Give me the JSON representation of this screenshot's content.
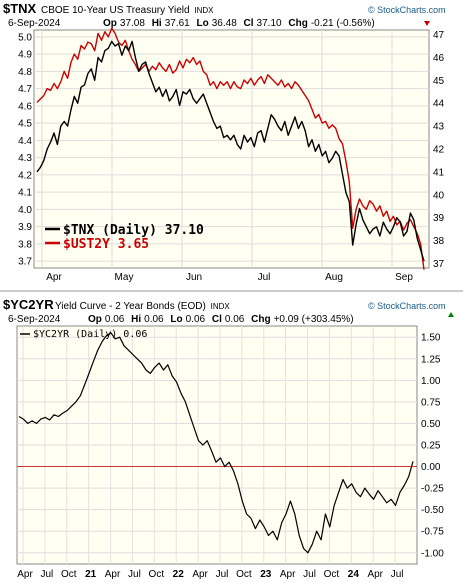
{
  "chart_data": [
    {
      "type": "line",
      "symbol": "$TNX",
      "title": "CBOE 10-Year US Treasury Yield",
      "exchange": "INDX",
      "date": "6-Sep-2024",
      "ohlc": {
        "op": "37.08",
        "hi": "37.61",
        "lo": "36.48",
        "cl": "37.10",
        "chg": "-0.21 (-0.56%)"
      },
      "brand": "© StockCharts.com",
      "legend": [
        {
          "name": "$TNX (Daily) 37.10",
          "color": "#000000"
        },
        {
          "name": "$UST2Y 3.65",
          "color": "#cc0000"
        }
      ],
      "x_labels": [
        "Apr",
        "May",
        "Jun",
        "Jul",
        "Aug",
        "Sep"
      ],
      "left_axis": {
        "ticks": [
          "5.0",
          "4.9",
          "4.8",
          "4.7",
          "4.6",
          "4.5",
          "4.4",
          "4.3",
          "4.2",
          "4.1",
          "4.0",
          "3.9",
          "3.8",
          "3.7"
        ],
        "range": [
          3.66,
          5.04
        ]
      },
      "right_axis": {
        "ticks": [
          "47",
          "46",
          "45",
          "44",
          "43",
          "42",
          "41",
          "40",
          "39",
          "38",
          "37"
        ],
        "range": [
          36.8,
          47.2
        ]
      },
      "series": [
        {
          "name": "$TNX (Daily)",
          "color": "#000000",
          "axis": "right",
          "values": [
            41.0,
            41.2,
            41.5,
            42.0,
            42.3,
            42.7,
            42.2,
            43.0,
            43.2,
            43.0,
            43.7,
            44.3,
            44.0,
            44.7,
            44.8,
            45.3,
            45.5,
            45.0,
            46.0,
            45.8,
            46.3,
            46.4,
            46.7,
            46.5,
            46.6,
            46.1,
            46.5,
            46.3,
            46.7,
            46.0,
            45.4,
            45.7,
            45.8,
            45.3,
            44.9,
            44.5,
            44.7,
            44.3,
            44.6,
            44.1,
            44.3,
            44.6,
            43.9,
            44.5,
            44.4,
            44.6,
            44.2,
            44.0,
            44.2,
            44.4,
            44.0,
            43.6,
            43.2,
            42.9,
            43.0,
            42.5,
            42.6,
            42.4,
            42.6,
            42.2,
            42.0,
            42.6,
            42.3,
            42.5,
            42.1,
            42.7,
            42.8,
            42.3,
            42.9,
            43.5,
            43.3,
            43.0,
            42.8,
            43.2,
            42.6,
            43.0,
            43.4,
            42.9,
            43.2,
            42.8,
            42.1,
            42.4,
            41.9,
            42.2,
            41.7,
            41.9,
            41.4,
            41.6,
            41.9,
            41.7,
            40.9,
            40.1,
            39.7,
            37.8,
            38.7,
            39.4,
            38.9,
            38.6,
            38.3,
            38.5,
            38.6,
            38.2,
            38.8,
            38.5,
            38.3,
            38.6,
            39.0,
            38.8,
            38.2,
            38.4,
            39.2,
            38.9,
            38.1,
            37.6,
            37.1
          ]
        },
        {
          "name": "$UST2Y",
          "color": "#cc0000",
          "axis": "left",
          "values": [
            4.62,
            4.64,
            4.66,
            4.7,
            4.69,
            4.73,
            4.7,
            4.74,
            4.8,
            4.76,
            4.85,
            4.9,
            4.87,
            4.95,
            4.93,
            4.97,
            4.96,
            4.92,
            5.02,
            4.98,
            5.03,
            5.0,
            5.05,
            5.02,
            4.97,
            4.95,
            4.98,
            4.92,
            4.87,
            4.84,
            4.8,
            4.82,
            4.84,
            4.8,
            4.83,
            4.81,
            4.85,
            4.82,
            4.8,
            4.84,
            4.79,
            4.81,
            4.86,
            4.82,
            4.87,
            4.85,
            4.88,
            4.84,
            4.86,
            4.8,
            4.78,
            4.72,
            4.74,
            4.7,
            4.74,
            4.72,
            4.74,
            4.7,
            4.74,
            4.71,
            4.7,
            4.75,
            4.73,
            4.76,
            4.72,
            4.75,
            4.77,
            4.73,
            4.78,
            4.76,
            4.74,
            4.72,
            4.75,
            4.71,
            4.73,
            4.7,
            4.74,
            4.72,
            4.69,
            4.66,
            4.63,
            4.58,
            4.53,
            4.55,
            4.5,
            4.51,
            4.47,
            4.49,
            4.47,
            4.41,
            4.38,
            4.28,
            4.16,
            3.89,
            4.0,
            4.06,
            4.02,
            4.0,
            4.05,
            4.03,
            3.99,
            4.02,
            3.96,
            3.99,
            3.93,
            3.96,
            3.91,
            3.93,
            3.88,
            3.92,
            3.94,
            3.9,
            3.86,
            3.8,
            3.65
          ]
        }
      ]
    },
    {
      "type": "line",
      "symbol": "$YC2YR",
      "title": "Yield Curve - 2 Year Bonds (EOD)",
      "exchange": "INDX",
      "date": "6-Sep-2024",
      "ohlc": {
        "op": "0.06",
        "hi": "0.06",
        "lo": "0.06",
        "cl": "0.06",
        "chg": "+0.09 (+303.45%)"
      },
      "brand": "© StockCharts.com",
      "legend": [
        {
          "name": "$YC2YR (Daily) 0.06",
          "color": "#000000"
        }
      ],
      "x_labels": [
        {
          "text": "Apr",
          "bold": false
        },
        {
          "text": "Jul",
          "bold": false
        },
        {
          "text": "Oct",
          "bold": false
        },
        {
          "text": "21",
          "bold": true
        },
        {
          "text": "Apr",
          "bold": false
        },
        {
          "text": "Jul",
          "bold": false
        },
        {
          "text": "Oct",
          "bold": false
        },
        {
          "text": "22",
          "bold": true
        },
        {
          "text": "Apr",
          "bold": false
        },
        {
          "text": "Jul",
          "bold": false
        },
        {
          "text": "Oct",
          "bold": false
        },
        {
          "text": "23",
          "bold": true
        },
        {
          "text": "Apr",
          "bold": false
        },
        {
          "text": "Jul",
          "bold": false
        },
        {
          "text": "Oct",
          "bold": false
        },
        {
          "text": "24",
          "bold": true
        },
        {
          "text": "Apr",
          "bold": false
        },
        {
          "text": "Jul",
          "bold": false
        }
      ],
      "right_axis": {
        "ticks": [
          "1.50",
          "1.25",
          "1.00",
          "0.75",
          "0.50",
          "0.25",
          "0.00",
          "-0.25",
          "-0.50",
          "-0.75",
          "-1.00"
        ],
        "range": [
          -1.13,
          1.63
        ]
      },
      "reference_line": {
        "value": 0.0,
        "color": "#cc3333"
      },
      "series": [
        {
          "name": "$YC2YR (Daily)",
          "color": "#000000",
          "values": [
            0.58,
            0.55,
            0.5,
            0.53,
            0.5,
            0.55,
            0.57,
            0.54,
            0.6,
            0.58,
            0.62,
            0.65,
            0.7,
            0.75,
            0.82,
            0.95,
            1.08,
            1.22,
            1.35,
            1.45,
            1.52,
            1.55,
            1.48,
            1.5,
            1.4,
            1.35,
            1.3,
            1.25,
            1.2,
            1.12,
            1.08,
            1.15,
            1.2,
            1.12,
            1.18,
            1.05,
            0.98,
            0.85,
            0.75,
            0.6,
            0.45,
            0.3,
            0.25,
            0.3,
            0.18,
            0.05,
            0.1,
            0.0,
            0.05,
            -0.05,
            -0.2,
            -0.4,
            -0.55,
            -0.6,
            -0.72,
            -0.62,
            -0.7,
            -0.8,
            -0.75,
            -0.85,
            -0.65,
            -0.55,
            -0.4,
            -0.55,
            -0.8,
            -0.95,
            -1.0,
            -0.9,
            -0.75,
            -0.85,
            -0.55,
            -0.7,
            -0.45,
            -0.3,
            -0.15,
            -0.25,
            -0.2,
            -0.3,
            -0.35,
            -0.25,
            -0.32,
            -0.38,
            -0.28,
            -0.35,
            -0.42,
            -0.38,
            -0.45,
            -0.3,
            -0.22,
            -0.12,
            0.06
          ]
        }
      ]
    }
  ]
}
